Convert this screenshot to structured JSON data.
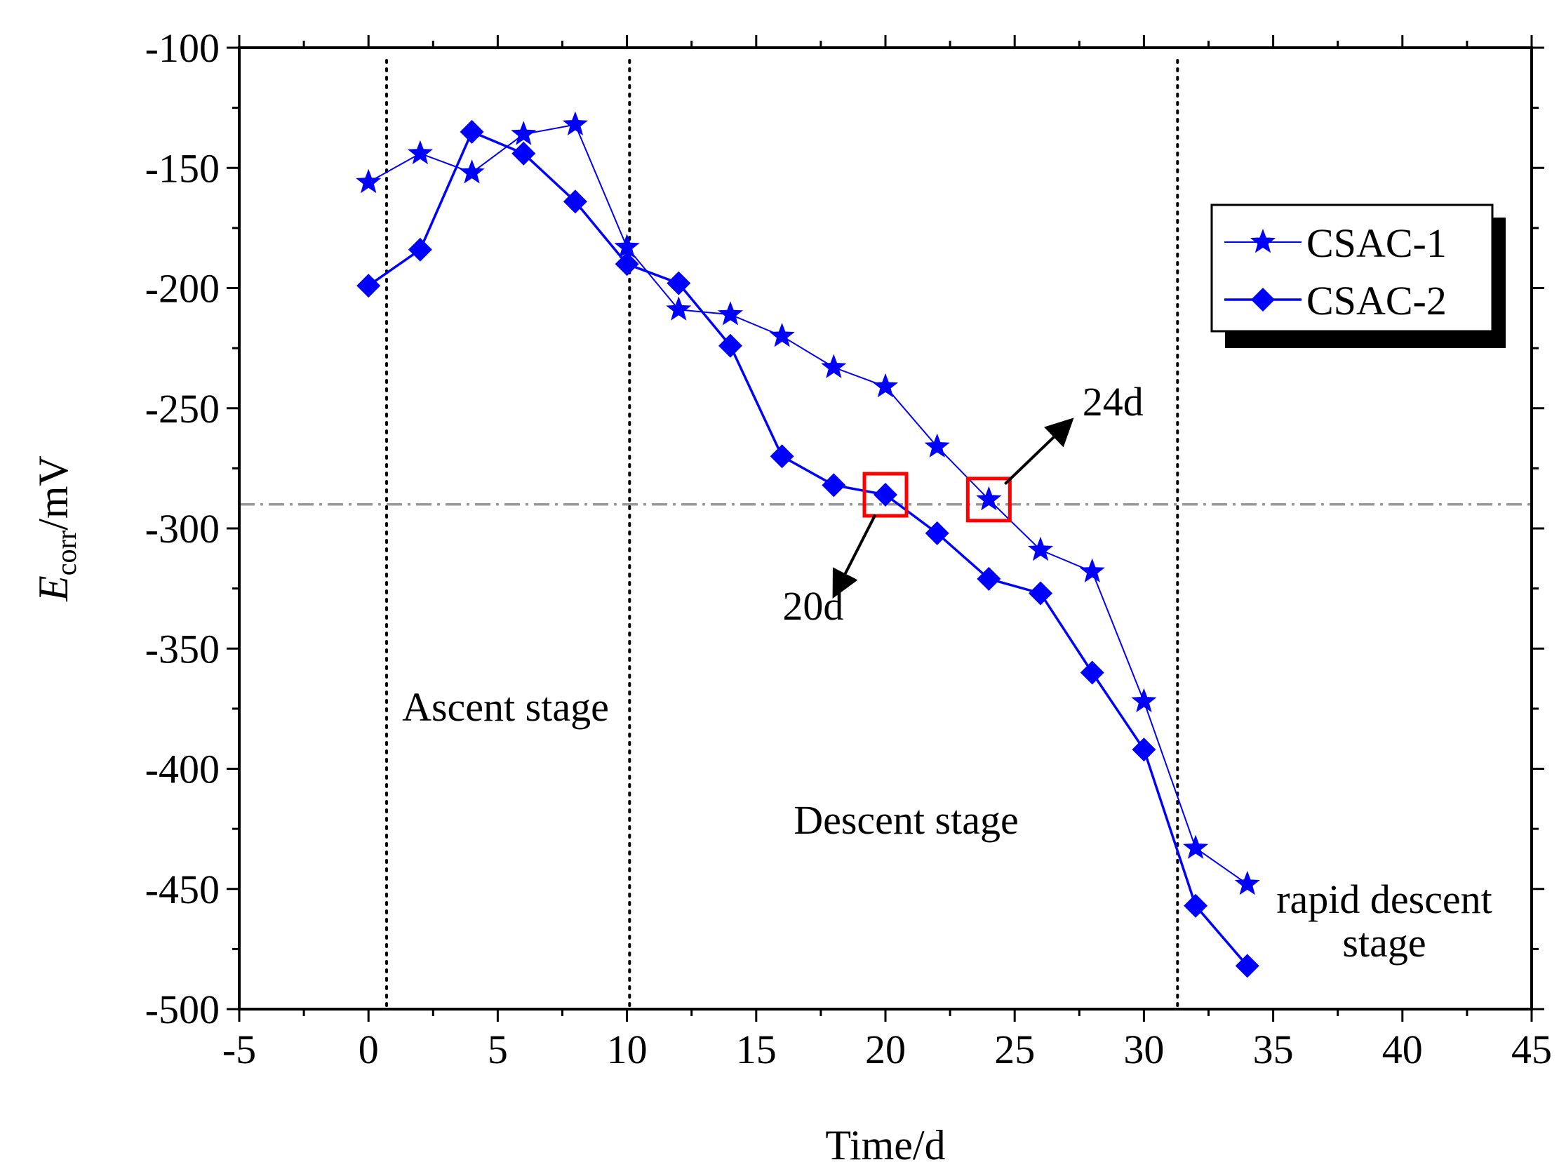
{
  "chart_data": {
    "type": "line",
    "title": "",
    "xlabel": "Time/d",
    "ylabel": {
      "main": "E",
      "sub": "corr",
      "unit": "/mV"
    },
    "xlim": [
      -5,
      45
    ],
    "ylim": [
      -500,
      -100
    ],
    "xticks": [
      -5,
      0,
      5,
      10,
      15,
      20,
      25,
      30,
      35,
      40,
      45
    ],
    "yticks": [
      -100,
      -150,
      -200,
      -250,
      -300,
      -350,
      -400,
      -450,
      -500
    ],
    "grid": false,
    "legend_position": "top-right",
    "series": [
      {
        "name": "CSAC-1",
        "marker": "star",
        "color": "#0000ff",
        "x": [
          0,
          2,
          4,
          6,
          8,
          10,
          12,
          14,
          16,
          18,
          20,
          22,
          24,
          26,
          28,
          30,
          32,
          34
        ],
        "y": [
          -156,
          -144,
          -152,
          -136,
          -132,
          -183,
          -209,
          -211,
          -220,
          -233,
          -241,
          -266,
          -288,
          -309,
          -318,
          -372,
          -433,
          -448
        ]
      },
      {
        "name": "CSAC-2",
        "marker": "diamond",
        "color": "#0000ff",
        "x": [
          0,
          2,
          4,
          6,
          8,
          10,
          12,
          14,
          16,
          18,
          20,
          22,
          24,
          26,
          28,
          30,
          32,
          34
        ],
        "y": [
          -199,
          -184,
          -135,
          -144,
          -164,
          -190,
          -198,
          -224,
          -270,
          -282,
          -286,
          -302,
          -321,
          -327,
          -360,
          -392,
          -457,
          -482
        ]
      }
    ],
    "reference_line": {
      "y": -290,
      "style": "dash-dot",
      "color": "#999999"
    },
    "stage_dividers": [
      0.7,
      10.1,
      31.3
    ],
    "stage_labels": [
      {
        "lines": [
          "Ascent stage"
        ],
        "x": 5.3,
        "y": -380
      },
      {
        "lines": [
          "Descent stage"
        ],
        "x": 20.8,
        "y": -427
      },
      {
        "lines": [
          "rapid descent",
          "stage"
        ],
        "x": 39.3,
        "y": -460
      }
    ],
    "highlights": [
      {
        "x": 20,
        "y": -286,
        "label": "20d",
        "arrow_to": [
          18.2,
          -324
        ],
        "label_at": [
          17.2,
          -338
        ]
      },
      {
        "x": 24,
        "y": -288,
        "label": "24d",
        "arrow_to": [
          26.9,
          -258
        ],
        "label_at": [
          28.8,
          -253
        ]
      }
    ],
    "highlight_color": "#ff0000"
  }
}
